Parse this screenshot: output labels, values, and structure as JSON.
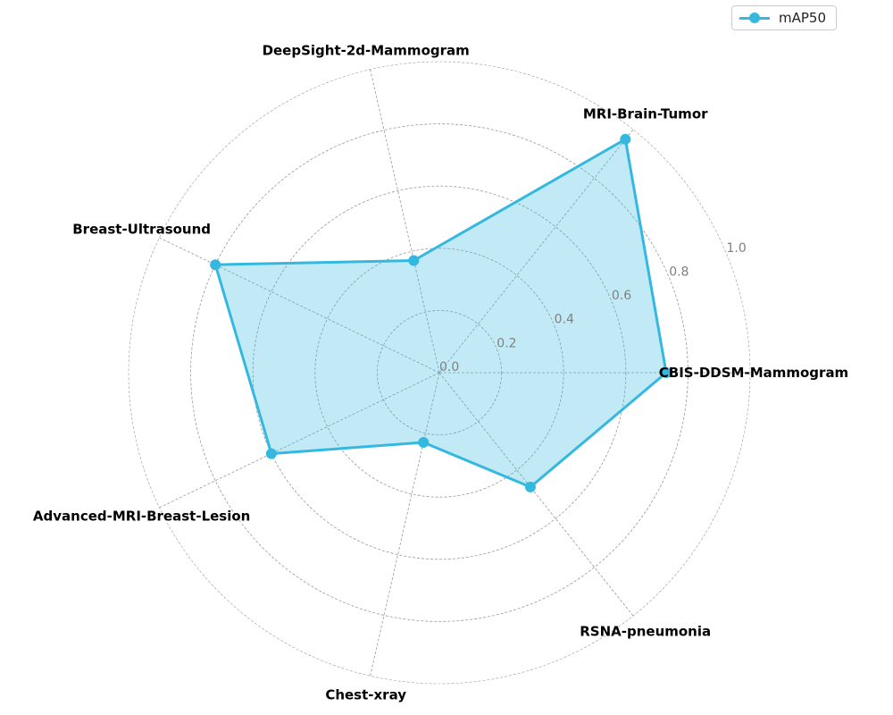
{
  "chart_data": {
    "type": "radar",
    "categories": [
      "CBIS-DDSM-Mammogram",
      "MRI-Brain-Tumor",
      "DeepSight-2d-Mammogram",
      "Breast-Ultrasound",
      "Advanced-MRI-Breast-Lesion",
      "Chest-xray",
      "RSNA-pneumonia"
    ],
    "series": [
      {
        "name": "mAP50",
        "values": [
          0.73,
          0.96,
          0.37,
          0.8,
          0.6,
          0.23,
          0.47
        ],
        "color": "#35b8e0"
      }
    ],
    "rlim": [
      0,
      1.0
    ],
    "ticks": [
      "0.0",
      "0.2",
      "0.4",
      "0.6",
      "0.8",
      "1.0"
    ],
    "tick_values": [
      0,
      0.2,
      0.4,
      0.6,
      0.8,
      1.0
    ],
    "grid": true,
    "legend_position": "top-right",
    "fill_color": "#35b8e0"
  }
}
